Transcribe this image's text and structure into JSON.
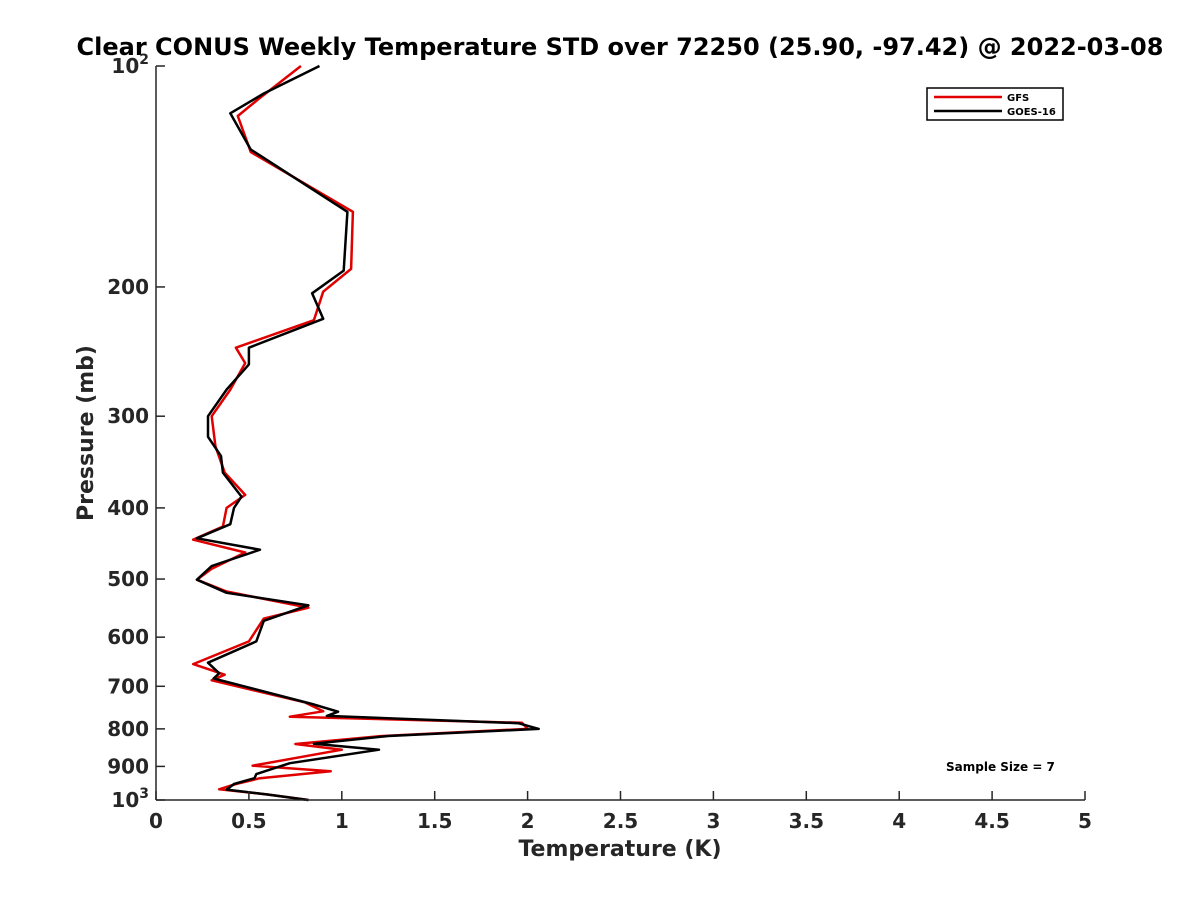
{
  "chart_data": {
    "type": "line",
    "title": "Clear CONUS Weekly Temperature STD over 72250 (25.90, -97.42) @ 2022-03-08",
    "xlabel": "Temperature (K)",
    "ylabel": "Pressure (mb)",
    "xlim": [
      0,
      5
    ],
    "ylim": [
      100,
      1000
    ],
    "yscale": "log",
    "yreversed": true,
    "x_ticks": [
      0,
      0.5,
      1,
      1.5,
      2,
      2.5,
      3,
      3.5,
      4,
      4.5,
      5
    ],
    "x_tick_labels": [
      "0",
      "0.5",
      "1",
      "1.5",
      "2",
      "2.5",
      "3",
      "3.5",
      "4",
      "4.5",
      "5"
    ],
    "y_ticks": [
      100,
      200,
      300,
      400,
      500,
      600,
      700,
      800,
      900,
      1000
    ],
    "y_tick_labels": [
      {
        "base": "10",
        "exp": "2"
      },
      {
        "base": "200",
        "exp": ""
      },
      {
        "base": "300",
        "exp": ""
      },
      {
        "base": "400",
        "exp": ""
      },
      {
        "base": "500",
        "exp": ""
      },
      {
        "base": "600",
        "exp": ""
      },
      {
        "base": "700",
        "exp": ""
      },
      {
        "base": "800",
        "exp": ""
      },
      {
        "base": "900",
        "exp": ""
      },
      {
        "base": "10",
        "exp": "3"
      }
    ],
    "grid": false,
    "legend_position": "top-right",
    "annotation": "Sample Size = 7",
    "series": [
      {
        "name": "GFS",
        "color": "#e00000",
        "points": [
          [
            0.78,
            100
          ],
          [
            0.55,
            111
          ],
          [
            0.44,
            117
          ],
          [
            0.51,
            131
          ],
          [
            1.06,
            158
          ],
          [
            1.05,
            189
          ],
          [
            0.9,
            203
          ],
          [
            0.85,
            222
          ],
          [
            0.43,
            242
          ],
          [
            0.48,
            254
          ],
          [
            0.4,
            276
          ],
          [
            0.3,
            300
          ],
          [
            0.32,
            330
          ],
          [
            0.37,
            358
          ],
          [
            0.48,
            384
          ],
          [
            0.38,
            400
          ],
          [
            0.36,
            424
          ],
          [
            0.2,
            442
          ],
          [
            0.48,
            460
          ],
          [
            0.3,
            484
          ],
          [
            0.22,
            501
          ],
          [
            0.38,
            520
          ],
          [
            0.82,
            547
          ],
          [
            0.58,
            566
          ],
          [
            0.5,
            608
          ],
          [
            0.2,
            653
          ],
          [
            0.37,
            675
          ],
          [
            0.3,
            687
          ],
          [
            0.8,
            736
          ],
          [
            0.9,
            757
          ],
          [
            0.72,
            770
          ],
          [
            1.97,
            785
          ],
          [
            2.0,
            800
          ],
          [
            1.22,
            818
          ],
          [
            0.75,
            839
          ],
          [
            1.0,
            854
          ],
          [
            0.52,
            898
          ],
          [
            0.94,
            914
          ],
          [
            0.56,
            934
          ],
          [
            0.43,
            951
          ],
          [
            0.34,
            967
          ],
          [
            0.6,
            983
          ],
          [
            0.82,
            1000
          ]
        ]
      },
      {
        "name": "GOES-16",
        "color": "#000000",
        "points": [
          [
            0.88,
            100
          ],
          [
            0.58,
            109
          ],
          [
            0.4,
            116
          ],
          [
            0.51,
            130
          ],
          [
            1.03,
            158
          ],
          [
            1.01,
            190
          ],
          [
            0.84,
            204
          ],
          [
            0.9,
            221
          ],
          [
            0.5,
            242
          ],
          [
            0.5,
            255
          ],
          [
            0.38,
            276
          ],
          [
            0.28,
            300
          ],
          [
            0.28,
            320
          ],
          [
            0.35,
            340
          ],
          [
            0.36,
            358
          ],
          [
            0.46,
            386
          ],
          [
            0.42,
            400
          ],
          [
            0.4,
            421
          ],
          [
            0.22,
            440
          ],
          [
            0.56,
            456
          ],
          [
            0.3,
            480
          ],
          [
            0.22,
            501
          ],
          [
            0.38,
            522
          ],
          [
            0.82,
            543
          ],
          [
            0.58,
            570
          ],
          [
            0.54,
            608
          ],
          [
            0.28,
            650
          ],
          [
            0.34,
            672
          ],
          [
            0.31,
            683
          ],
          [
            0.84,
            740
          ],
          [
            0.98,
            758
          ],
          [
            0.92,
            768
          ],
          [
            1.95,
            786
          ],
          [
            2.06,
            800
          ],
          [
            1.25,
            818
          ],
          [
            0.85,
            838
          ],
          [
            1.2,
            854
          ],
          [
            0.72,
            891
          ],
          [
            0.54,
            922
          ],
          [
            0.53,
            934
          ],
          [
            0.42,
            951
          ],
          [
            0.38,
            968
          ],
          [
            0.6,
            983
          ],
          [
            0.82,
            1000
          ]
        ]
      }
    ]
  }
}
